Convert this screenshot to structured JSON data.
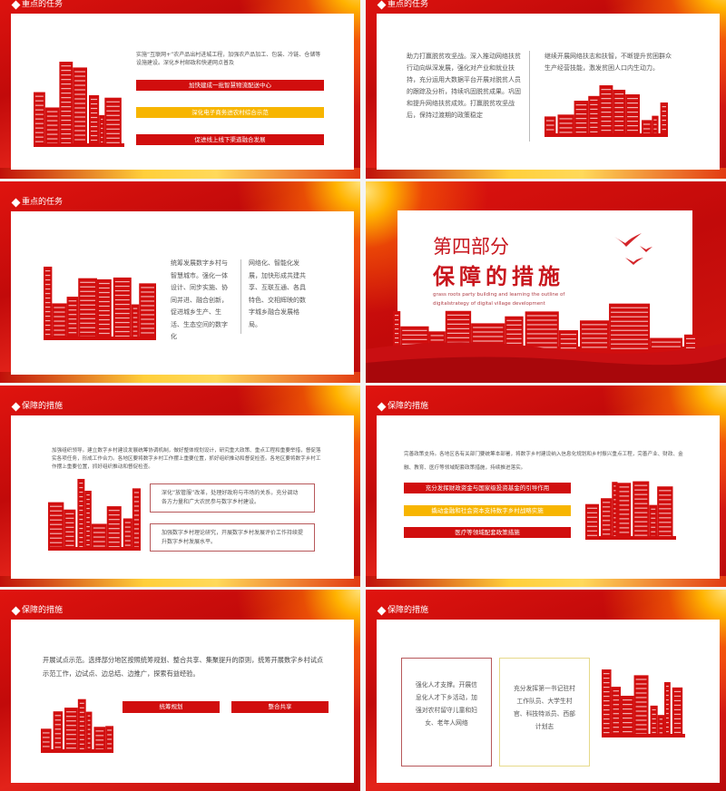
{
  "colors": {
    "red": "#d10e0e",
    "yellow": "#f7b500",
    "gold": "#ffcf3a",
    "text": "#555555"
  },
  "slides": [
    {
      "title": "重点的任务",
      "text": "实施“互联网+”农产品出村进城工程，加强农产品加工、包装、冷链、仓储等设施建设。深化乡村邮政和快递网点普及",
      "bars": [
        "加快建成一批智慧物流配送中心",
        "深化电子商务进农村综合示范",
        "促进线上线下渠道融合发展"
      ]
    },
    {
      "title": "重点的任务",
      "left": "助力打赢脱贫攻坚战。深入推动网络扶贫行动向纵深发展，强化对产业和就业扶持，充分运用大数据平台开展对脱贫人员的跟踪及分析，持续巩固脱贫成果。巩固和提升网络扶贫成效。打赢脱贫攻坚战后，保持过渡期的政策稳定",
      "right": "继续开展网络扶志和扶智，不断提升贫困群众生产经营技能，激发贫困人口内生动力。"
    },
    {
      "title": "重点的任务",
      "col1": "统筹发展数字乡村与智慧城市。强化一体设计、同步实施、协同并进、融合创新，促进城乡生产、生活、生态空间的数字化",
      "col2": "网络化、智能化发展，加快形成共建共享、互联互通、各具特色、交相辉映的数字城乡融合发展格局。"
    },
    {
      "part": "第四部分",
      "heading": "保障的措施",
      "english": "grass roots party building and learning the outline of digitalstrategy of digital village development"
    },
    {
      "title": "保障的措施",
      "text": "加强组织领导。建立数字乡村建设发展统筹协调机制，做好整体规划设计，研究重大政策、重点工程和重要举措，督促落实各项任务，形成工作合力。各地区要将数字乡村工作摆上重要位置，抓好组织推动和督促检查。各地区要将数字乡村工作摆上重要位置，抓好组织推动和督促检查。",
      "boxes": [
        "深化“放管服”改革，处理好政府与市场的关系，充分调动各方力量和广大农民参与数字乡村建设。",
        "加强数字乡村理论研究，开展数字乡村发展评价工作持续提升数字乡村发展水平。"
      ]
    },
    {
      "title": "保障的措施",
      "text": "完善政策支持。各地区各有关部门要统筹本部署，将数字乡村建设纳入信息化规划和乡村振兴重点工程，完善产业、财政、金融、教育、医疗等领域配套政策措施，持续推进落实。",
      "bars": [
        "充分发挥财政资金与国家级投资基金的引导作用",
        "撬动金融和社会资本支持数字乡村战略实施",
        "医疗等领域配套政策措施"
      ]
    },
    {
      "title": "保障的措施",
      "text": "开展试点示范。选择部分地区按照统筹规划、整合共享、集聚提升的原则，统筹开展数字乡村试点示范工作，边试点、边总结、边推广，探索有益经验。",
      "buttons": [
        "统筹规划",
        "整合共享"
      ]
    },
    {
      "title": "保障的措施",
      "box1": "强化人才支撑。开展信息化人才下乡活动，加强对农村留守儿童和妇女、老年人网络",
      "box2": "充分发挥第一书记驻村工作队员、大学生村官、科技特派员、西部计划志"
    }
  ]
}
